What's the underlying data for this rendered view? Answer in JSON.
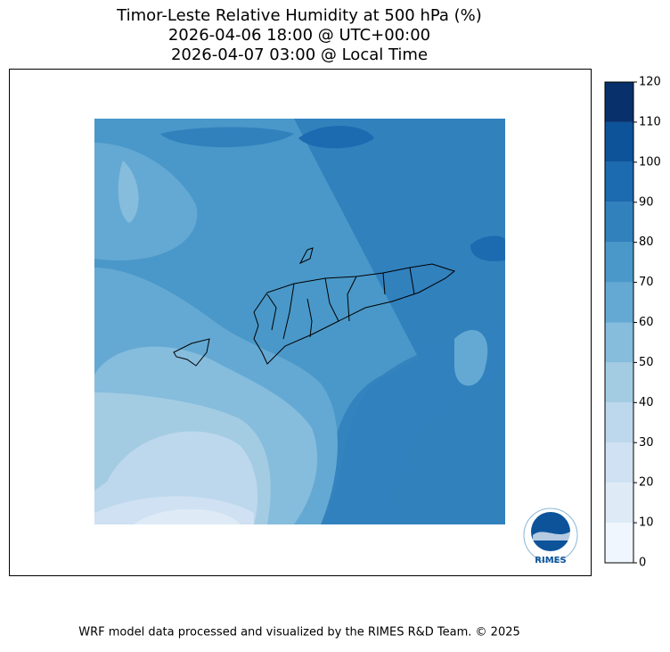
{
  "title": [
    "Timor-Leste Relative Humidity at 500 hPa (%)",
    "2026-04-06 18:00 @ UTC+00:00",
    "2026-04-07 03:00 @ Local Time"
  ],
  "colorbar": {
    "ticks": [
      0,
      10,
      20,
      30,
      40,
      50,
      60,
      70,
      80,
      90,
      100,
      110,
      120
    ],
    "colors": [
      "#f0f6fd",
      "#deebf7",
      "#cfe1f2",
      "#bdd7ec",
      "#a3cce3",
      "#86bcdc",
      "#64a9d3",
      "#4a98c9",
      "#3181bd",
      "#1c6ab0",
      "#0c539a",
      "#08306b"
    ]
  },
  "logo": "RIMES",
  "footer": "WRF model data processed and visualized by the RIMES R&D Team. © 2025"
}
